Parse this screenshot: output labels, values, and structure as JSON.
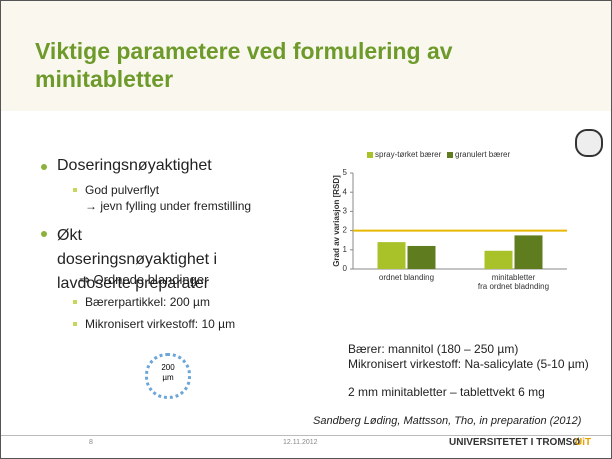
{
  "title": "Viktige parametere ved formulering av minitabletter",
  "bullets": [
    {
      "text": "Doseringsnøyaktighet",
      "items": [
        "God pulverflyt"
      ],
      "note": "→ jevn fylling under fremstilling"
    },
    {
      "text": "Økt doseringsnøyaktighet i lavdoserte preparater",
      "note": "⇒ Ordnede blandinger",
      "items": [
        "Bærerpartikkel: 200 µm",
        "Mikronisert virkestoff: 10 µm"
      ]
    }
  ],
  "particle_label": "200\nµm",
  "notes": [
    "Bærer: mannitol (180 – 250 µm)",
    "Mikronisert virkestoff: Na-salicylate (5-10 µm)",
    "2 mm minitabletter –  tablettvekt 6 mg"
  ],
  "citation": "Sandberg Løding, Mattsson, Tho, in preparation (2012)",
  "footer": {
    "page": "8",
    "date": "12.11.2012",
    "university": "UNIVERSITETET I TROMSØ",
    "logo": "UiT"
  },
  "chart_data": {
    "type": "bar",
    "ylabel": "Grad av variasjon [RSD]",
    "categories": [
      "ordnet blanding",
      "minitabletter\nfra ordnet bladnding"
    ],
    "series": [
      {
        "name": "spray-tørket bærer",
        "color": "#a9c22a",
        "values": [
          1.4,
          0.95
        ]
      },
      {
        "name": "granulert bærer",
        "color": "#5f7d1f",
        "values": [
          1.2,
          1.75
        ]
      }
    ],
    "reference_line": 2,
    "reference_color": "#e8b800",
    "ylim": [
      0,
      5
    ],
    "yticks": [
      0,
      1,
      2,
      3,
      4,
      5
    ],
    "legend": "top"
  }
}
